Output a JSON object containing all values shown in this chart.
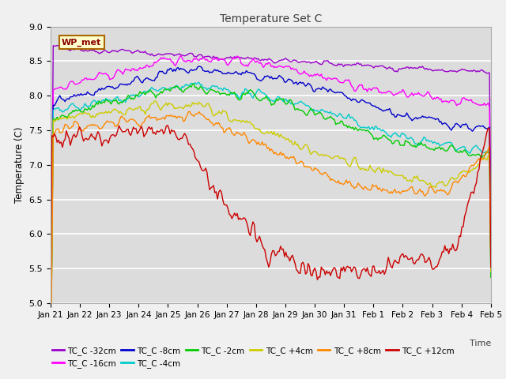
{
  "title": "Temperature Set C",
  "xlabel": "Time",
  "ylabel": "Temperature (C)",
  "ylim": [
    5.0,
    9.0
  ],
  "yticks": [
    5.0,
    5.5,
    6.0,
    6.5,
    7.0,
    7.5,
    8.0,
    8.5,
    9.0
  ],
  "background_color": "#dcdcdc",
  "series": [
    {
      "label": "TC_C -32cm",
      "color": "#9900cc"
    },
    {
      "label": "TC_C -16cm",
      "color": "#ff00ff"
    },
    {
      "label": "TC_C -8cm",
      "color": "#0000cc"
    },
    {
      "label": "TC_C -4cm",
      "color": "#00cccc"
    },
    {
      "label": "TC_C -2cm",
      "color": "#00cc00"
    },
    {
      "label": "TC_C +4cm",
      "color": "#cccc00"
    },
    {
      "label": "TC_C +8cm",
      "color": "#ff8800"
    },
    {
      "label": "TC_C +12cm",
      "color": "#cc0000"
    }
  ],
  "xtick_labels": [
    "Jan 21",
    "Jan 22",
    "Jan 23",
    "Jan 24",
    "Jan 25",
    "Jan 26",
    "Jan 27",
    "Jan 28",
    "Jan 29",
    "Jan 30",
    "Jan 31",
    "Feb 1",
    "Feb 2",
    "Feb 3",
    "Feb 4",
    "Feb 5"
  ],
  "n_points": 336,
  "legend_ncol": 6
}
